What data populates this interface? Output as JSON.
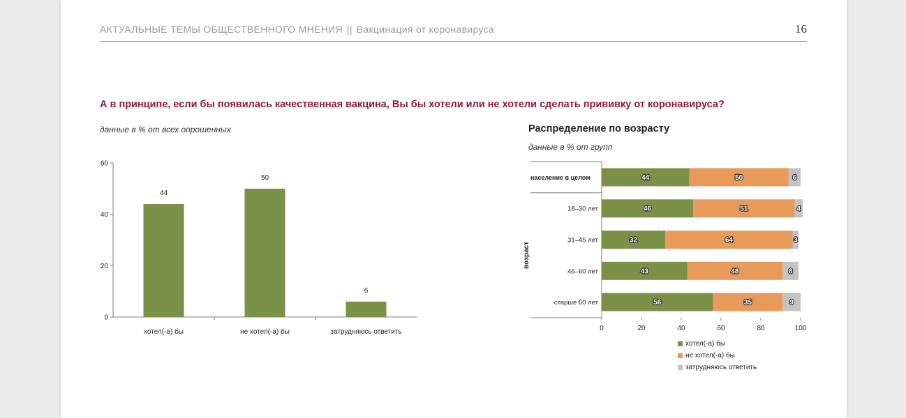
{
  "header": {
    "section": "АКТУАЛЬНЫЕ ТЕМЫ ОБЩЕСТВЕННОГО МНЕНИЯ",
    "separator": "||",
    "topic": "Вакцинация от коронавируса",
    "page_number": "16"
  },
  "question": "А в принципе, если бы появилась качественная вакцина, Вы бы хотели или не хотели сделать прививку от коронавируса?",
  "chart1_note": "данные в % от всех опрошенных",
  "chart2_title": "Распределение по возрасту",
  "chart2_note": "данные в % от групп",
  "colors": {
    "green": "#7a9147",
    "orange": "#e89a5a",
    "gray": "#c3c3c3"
  },
  "chart_data": [
    {
      "type": "bar",
      "categories": [
        "хотел(-а) бы",
        "не хотел(-а) бы",
        "затрудняюсь ответить"
      ],
      "values": [
        44,
        50,
        6
      ],
      "ylim": [
        0,
        60
      ],
      "yticks": [
        0,
        20,
        40,
        60
      ],
      "grid": false
    },
    {
      "type": "bar",
      "orientation": "horizontal",
      "stacked": true,
      "categories": [
        "население в целом",
        "18–30 лет",
        "31–45 лет",
        "46–60 лет",
        "старше 60 лет"
      ],
      "ylabel": "возраст",
      "series": [
        {
          "name": "хотел(-а) бы",
          "values": [
            44,
            46,
            32,
            43,
            56
          ]
        },
        {
          "name": "не хотел(-а) бы",
          "values": [
            50,
            51,
            64,
            48,
            35
          ]
        },
        {
          "name": "затрудняюсь ответить",
          "values": [
            6,
            4,
            3,
            8,
            9
          ]
        }
      ],
      "xlim": [
        0,
        100
      ],
      "xticks": [
        0,
        20,
        40,
        60,
        80,
        100
      ],
      "legend": "bottom"
    }
  ]
}
